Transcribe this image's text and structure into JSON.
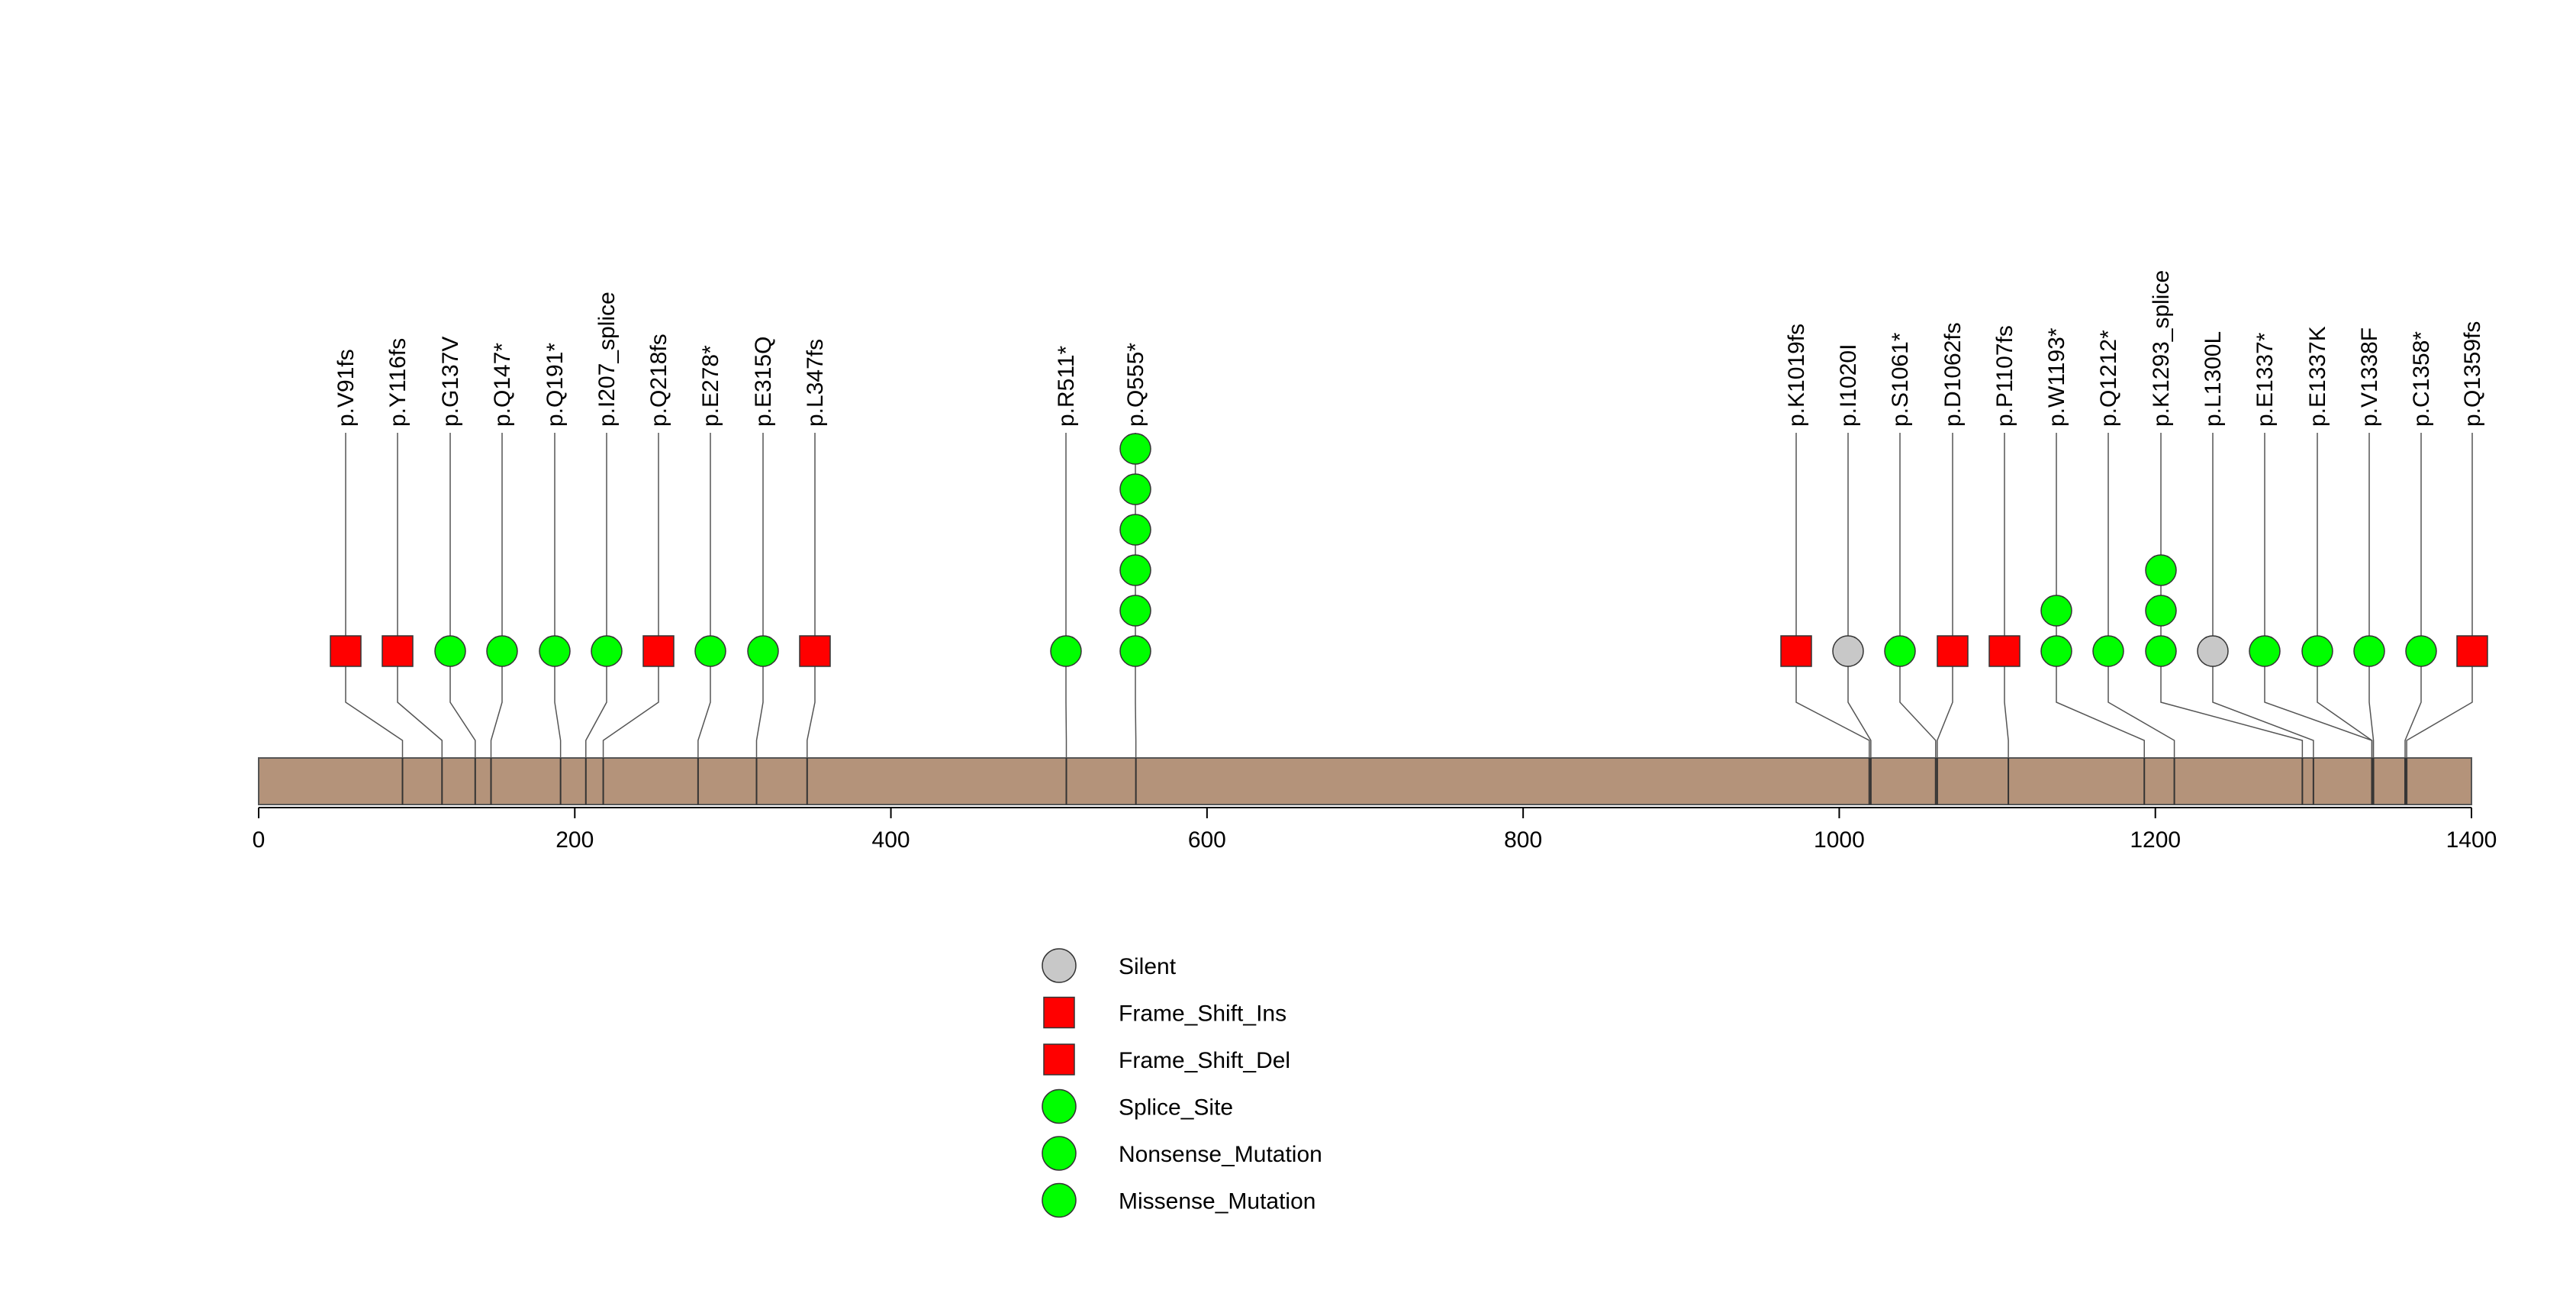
{
  "chart_data": {
    "type": "lollipop",
    "title": "",
    "xlabel": "",
    "ylabel": "",
    "xlim": [
      0,
      1400
    ],
    "x_ticks": [
      0,
      200,
      400,
      600,
      800,
      1000,
      1200,
      1400
    ],
    "x_tick_labels": [
      "0",
      "200",
      "400",
      "600",
      "800",
      "1000",
      "1200",
      "1400"
    ],
    "protein_length": 1400,
    "protein_color": "#b4937a",
    "grid": false,
    "legend_position": "bottom-center",
    "legend": [
      {
        "label": "Silent",
        "shape": "circle",
        "color": "#c8c8c8"
      },
      {
        "label": "Frame_Shift_Ins",
        "shape": "square",
        "color": "#ff0000"
      },
      {
        "label": "Frame_Shift_Del",
        "shape": "square",
        "color": "#ff0000"
      },
      {
        "label": "Splice_Site",
        "shape": "circle",
        "color": "#00ff00"
      },
      {
        "label": "Nonsense_Mutation",
        "shape": "circle",
        "color": "#00ff00"
      },
      {
        "label": "Missense_Mutation",
        "shape": "circle",
        "color": "#00ff00"
      }
    ],
    "mutations": [
      {
        "label": "p.V91fs",
        "position": 91,
        "markers": [
          {
            "shape": "square",
            "color": "#ff0000"
          }
        ]
      },
      {
        "label": "p.Y116fs",
        "position": 116,
        "markers": [
          {
            "shape": "square",
            "color": "#ff0000"
          }
        ]
      },
      {
        "label": "p.G137V",
        "position": 137,
        "markers": [
          {
            "shape": "circle",
            "color": "#00ff00"
          }
        ]
      },
      {
        "label": "p.Q147*",
        "position": 147,
        "markers": [
          {
            "shape": "circle",
            "color": "#00ff00"
          }
        ]
      },
      {
        "label": "p.Q191*",
        "position": 191,
        "markers": [
          {
            "shape": "circle",
            "color": "#00ff00"
          }
        ]
      },
      {
        "label": "p.I207_splice",
        "position": 207,
        "markers": [
          {
            "shape": "circle",
            "color": "#00ff00"
          }
        ]
      },
      {
        "label": "p.Q218fs",
        "position": 218,
        "markers": [
          {
            "shape": "square",
            "color": "#ff0000"
          }
        ]
      },
      {
        "label": "p.E278*",
        "position": 278,
        "markers": [
          {
            "shape": "circle",
            "color": "#00ff00"
          }
        ]
      },
      {
        "label": "p.E315Q",
        "position": 315,
        "markers": [
          {
            "shape": "circle",
            "color": "#00ff00"
          }
        ]
      },
      {
        "label": "p.L347fs",
        "position": 347,
        "markers": [
          {
            "shape": "square",
            "color": "#ff0000"
          }
        ]
      },
      {
        "label": "p.R511*",
        "position": 511,
        "markers": [
          {
            "shape": "circle",
            "color": "#00ff00"
          }
        ]
      },
      {
        "label": "p.Q555*",
        "position": 555,
        "markers": [
          {
            "shape": "circle",
            "color": "#00ff00"
          },
          {
            "shape": "circle",
            "color": "#00ff00"
          },
          {
            "shape": "circle",
            "color": "#00ff00"
          },
          {
            "shape": "circle",
            "color": "#00ff00"
          },
          {
            "shape": "circle",
            "color": "#00ff00"
          },
          {
            "shape": "circle",
            "color": "#00ff00"
          }
        ]
      },
      {
        "label": "p.K1019fs",
        "position": 1019,
        "markers": [
          {
            "shape": "square",
            "color": "#ff0000"
          }
        ]
      },
      {
        "label": "p.I1020I",
        "position": 1020,
        "markers": [
          {
            "shape": "circle",
            "color": "#c8c8c8"
          }
        ]
      },
      {
        "label": "p.S1061*",
        "position": 1061,
        "markers": [
          {
            "shape": "circle",
            "color": "#00ff00"
          }
        ]
      },
      {
        "label": "p.D1062fs",
        "position": 1062,
        "markers": [
          {
            "shape": "square",
            "color": "#ff0000"
          }
        ]
      },
      {
        "label": "p.P1107fs",
        "position": 1107,
        "markers": [
          {
            "shape": "square",
            "color": "#ff0000"
          }
        ]
      },
      {
        "label": "p.W1193*",
        "position": 1193,
        "markers": [
          {
            "shape": "circle",
            "color": "#00ff00"
          },
          {
            "shape": "circle",
            "color": "#00ff00"
          }
        ]
      },
      {
        "label": "p.Q1212*",
        "position": 1212,
        "markers": [
          {
            "shape": "circle",
            "color": "#00ff00"
          }
        ]
      },
      {
        "label": "p.K1293_splice",
        "position": 1293,
        "markers": [
          {
            "shape": "circle",
            "color": "#00ff00"
          },
          {
            "shape": "circle",
            "color": "#00ff00"
          },
          {
            "shape": "circle",
            "color": "#00ff00"
          }
        ]
      },
      {
        "label": "p.L1300L",
        "position": 1300,
        "markers": [
          {
            "shape": "circle",
            "color": "#c8c8c8"
          }
        ]
      },
      {
        "label": "p.E1337*",
        "position": 1337,
        "markers": [
          {
            "shape": "circle",
            "color": "#00ff00"
          }
        ]
      },
      {
        "label": "p.E1337K",
        "position": 1337,
        "markers": [
          {
            "shape": "circle",
            "color": "#00ff00"
          }
        ]
      },
      {
        "label": "p.V1338F",
        "position": 1338,
        "markers": [
          {
            "shape": "circle",
            "color": "#00ff00"
          }
        ]
      },
      {
        "label": "p.C1358*",
        "position": 1358,
        "markers": [
          {
            "shape": "circle",
            "color": "#00ff00"
          }
        ]
      },
      {
        "label": "p.Q1359fs",
        "position": 1359,
        "markers": [
          {
            "shape": "square",
            "color": "#ff0000"
          }
        ]
      }
    ]
  }
}
